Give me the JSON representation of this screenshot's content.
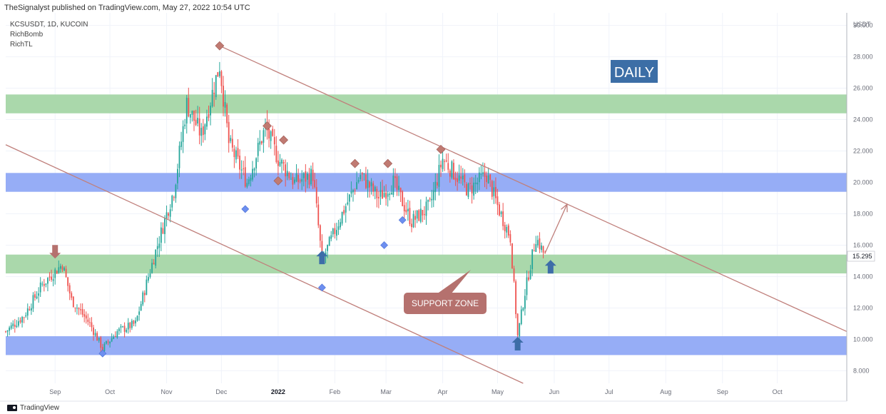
{
  "header": {
    "published": "TheSignalyst published on TradingView.com, May 27, 2022 10:54 UTC"
  },
  "indicators": [
    "KCSUSDT, 1D, KUCOIN",
    "RichBomb",
    "RichTL"
  ],
  "footer": {
    "brand": "TradingView"
  },
  "annotations": {
    "timeframe_label": "DAILY",
    "support_label": "SUPPORT ZONE"
  },
  "chart_data": {
    "type": "candlestick",
    "title": "",
    "currency_label": "USDT",
    "current_price": "15.295",
    "ylim": [
      7.2,
      30.8
    ],
    "y_ticks": [
      8,
      10,
      12,
      14,
      16,
      18,
      20,
      22,
      24,
      26,
      28,
      30
    ],
    "y_tick_labels": [
      "8.000",
      "10.000",
      "12.000",
      "14.000",
      "16.000",
      "18.000",
      "20.000",
      "22.000",
      "24.000",
      "26.000",
      "28.000",
      "30.000"
    ],
    "xlim": [
      "2021-08-05",
      "2022-11-08"
    ],
    "x_ticks": [
      {
        "date": "2021-09-01",
        "label": "Sep"
      },
      {
        "date": "2021-10-01",
        "label": "Oct"
      },
      {
        "date": "2021-11-01",
        "label": "Nov"
      },
      {
        "date": "2021-12-01",
        "label": "Dec"
      },
      {
        "date": "2022-01-01",
        "label": "2022"
      },
      {
        "date": "2022-02-01",
        "label": "Feb"
      },
      {
        "date": "2022-03-01",
        "label": "Mar"
      },
      {
        "date": "2022-04-01",
        "label": "Apr"
      },
      {
        "date": "2022-05-01",
        "label": "May"
      },
      {
        "date": "2022-06-01",
        "label": "Jun"
      },
      {
        "date": "2022-07-01",
        "label": "Jul"
      },
      {
        "date": "2022-08-01",
        "label": "Aug"
      },
      {
        "date": "2022-09-01",
        "label": "Sep"
      },
      {
        "date": "2022-10-01",
        "label": "Oct"
      }
    ],
    "price_path": [
      [
        "2021-08-05",
        10.5
      ],
      [
        "2021-08-15",
        11.5
      ],
      [
        "2021-08-25",
        13.5
      ],
      [
        "2021-09-05",
        14.8
      ],
      [
        "2021-09-10",
        12.5
      ],
      [
        "2021-09-20",
        11.0
      ],
      [
        "2021-09-27",
        9.4
      ],
      [
        "2021-10-05",
        10.5
      ],
      [
        "2021-10-15",
        11.0
      ],
      [
        "2021-10-22",
        14.0
      ],
      [
        "2021-11-01",
        18.0
      ],
      [
        "2021-11-05",
        19.5
      ],
      [
        "2021-11-12",
        25.0
      ],
      [
        "2021-11-20",
        23.0
      ],
      [
        "2021-11-30",
        27.5
      ],
      [
        "2021-12-05",
        22.5
      ],
      [
        "2021-12-15",
        20.0
      ],
      [
        "2021-12-25",
        23.5
      ],
      [
        "2022-01-01",
        21.5
      ],
      [
        "2022-01-10",
        20.0
      ],
      [
        "2022-01-20",
        20.5
      ],
      [
        "2022-01-25",
        15.0
      ],
      [
        "2022-02-05",
        18.0
      ],
      [
        "2022-02-15",
        20.5
      ],
      [
        "2022-02-25",
        19.0
      ],
      [
        "2022-03-05",
        20.0
      ],
      [
        "2022-03-15",
        17.5
      ],
      [
        "2022-03-25",
        18.5
      ],
      [
        "2022-04-01",
        21.5
      ],
      [
        "2022-04-15",
        19.5
      ],
      [
        "2022-04-25",
        20.5
      ],
      [
        "2022-05-01",
        18.5
      ],
      [
        "2022-05-08",
        16.5
      ],
      [
        "2022-05-12",
        10.2
      ],
      [
        "2022-05-16",
        13.0
      ],
      [
        "2022-05-22",
        16.5
      ],
      [
        "2022-05-27",
        15.295
      ]
    ],
    "zones": [
      {
        "low": 24.4,
        "high": 25.6,
        "color": "#a5d6a7"
      },
      {
        "low": 19.4,
        "high": 20.6,
        "color": "#90a9f5"
      },
      {
        "low": 14.2,
        "high": 15.4,
        "color": "#a5d6a7"
      },
      {
        "low": 9.0,
        "high": 10.2,
        "color": "#90a9f5"
      }
    ],
    "trendlines": [
      {
        "from": [
          "2021-11-30",
          28.7
        ],
        "to": [
          "2022-11-08",
          10.5
        ]
      },
      {
        "from": [
          "2021-08-05",
          22.4
        ],
        "to": [
          "2022-05-15",
          7.2
        ]
      }
    ],
    "projection": [
      [
        "2022-05-27",
        15.5
      ],
      [
        "2022-06-08",
        18.6
      ]
    ],
    "signal_markers": [
      {
        "date": "2021-11-30",
        "price": 28.7,
        "type": "top"
      },
      {
        "date": "2021-12-26",
        "price": 23.6,
        "type": "top"
      },
      {
        "date": "2022-01-04",
        "price": 22.7,
        "type": "top"
      },
      {
        "date": "2022-01-01",
        "price": 20.1,
        "type": "top"
      },
      {
        "date": "2022-02-12",
        "price": 21.2,
        "type": "top"
      },
      {
        "date": "2022-03-02",
        "price": 21.2,
        "type": "top"
      },
      {
        "date": "2022-03-31",
        "price": 22.1,
        "type": "top"
      },
      {
        "date": "2021-12-14",
        "price": 18.3,
        "type": "bottom"
      },
      {
        "date": "2021-09-27",
        "price": 9.1,
        "type": "bottom"
      },
      {
        "date": "2022-01-25",
        "price": 13.3,
        "type": "bottom"
      },
      {
        "date": "2022-02-28",
        "price": 16.0,
        "type": "bottom"
      },
      {
        "date": "2022-03-10",
        "price": 17.6,
        "type": "bottom"
      }
    ],
    "arrows": [
      {
        "date": "2021-09-01",
        "price": 15.6,
        "direction": "down",
        "color": "#b5716e"
      },
      {
        "date": "2022-01-25",
        "price": 15.2,
        "direction": "up",
        "color": "#3d6da8"
      },
      {
        "date": "2022-05-12",
        "price": 9.7,
        "direction": "up",
        "color": "#3d6da8"
      },
      {
        "date": "2022-05-30",
        "price": 14.6,
        "direction": "up",
        "color": "#3d6da8"
      }
    ],
    "colors": {
      "up": "#26a69a",
      "down": "#ef5350",
      "trendline": "#c0807c",
      "marker_top": "#c07a72",
      "marker_bottom": "#6d8ff0",
      "timeframe_bg": "#3c6ea6",
      "support_bg": "#b5716e"
    }
  }
}
